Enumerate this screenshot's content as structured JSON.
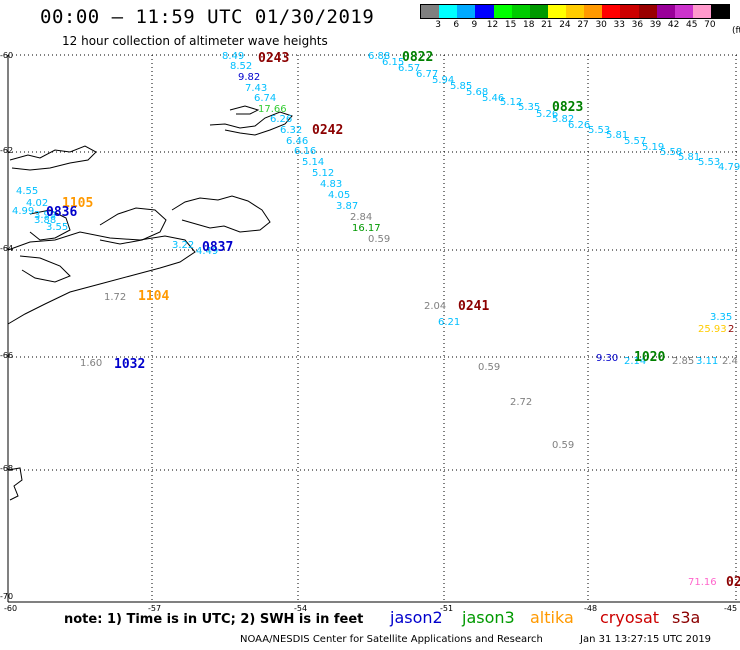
{
  "header": {
    "title": "00:00 – 11:59 UTC 01/30/2019",
    "subtitle": "12 hour collection of altimeter wave heights"
  },
  "legend": {
    "unit": "(ft)",
    "colors": [
      "#808080",
      "#00ffff",
      "#00aaff",
      "#0000ff",
      "#00ff00",
      "#00cc00",
      "#009900",
      "#ffff00",
      "#ffcc00",
      "#ff9900",
      "#ff0000",
      "#cc0000",
      "#990000",
      "#990099",
      "#cc33cc",
      "#ff99cc",
      "#000000"
    ],
    "labels": [
      "3",
      "6",
      "9",
      "12",
      "15",
      "18",
      "21",
      "24",
      "27",
      "30",
      "33",
      "36",
      "39",
      "42",
      "45",
      "70"
    ]
  },
  "axes": {
    "lat_labels": [
      "-60",
      "-62",
      "-64",
      "-66",
      "-68",
      "-70"
    ],
    "lon_labels": [
      "-57",
      "-54",
      "-51",
      "-48",
      "-45"
    ],
    "lon_left_label": "-60"
  },
  "passes": [
    {
      "label": "0243",
      "color": "#8b0000"
    },
    {
      "label": "0822",
      "color": "#008000"
    },
    {
      "label": "0823",
      "color": "#008000"
    },
    {
      "label": "0242",
      "color": "#8b0000"
    },
    {
      "label": "1105",
      "color": "#ff9900"
    },
    {
      "label": "0836",
      "color": "#0000cc"
    },
    {
      "label": "0837",
      "color": "#0000cc"
    },
    {
      "label": "1104",
      "color": "#ff9900"
    },
    {
      "label": "0241",
      "color": "#8b0000"
    },
    {
      "label": "1032",
      "color": "#0000cc"
    },
    {
      "label": "1020",
      "color": "#008000"
    },
    {
      "label": "02",
      "color": "#8b0000"
    }
  ],
  "points": [
    {
      "v": "8.49",
      "c": "#00bfff"
    },
    {
      "v": "8.52",
      "c": "#00bfff"
    },
    {
      "v": "9.82",
      "c": "#0000cc"
    },
    {
      "v": "7.43",
      "c": "#00bfff"
    },
    {
      "v": "6.74",
      "c": "#00bfff"
    },
    {
      "v": "17.66",
      "c": "#33cc33"
    },
    {
      "v": "6.26",
      "c": "#00bfff"
    },
    {
      "v": "6.32",
      "c": "#00bfff"
    },
    {
      "v": "6.46",
      "c": "#00bfff"
    },
    {
      "v": "6.16",
      "c": "#00bfff"
    },
    {
      "v": "5.14",
      "c": "#00bfff"
    },
    {
      "v": "5.12",
      "c": "#00bfff"
    },
    {
      "v": "4.83",
      "c": "#00bfff"
    },
    {
      "v": "4.05",
      "c": "#00bfff"
    },
    {
      "v": "3.87",
      "c": "#00bfff"
    },
    {
      "v": "2.84",
      "c": "#808080"
    },
    {
      "v": "16.17",
      "c": "#009900"
    },
    {
      "v": "0.59",
      "c": "#808080"
    },
    {
      "v": "6.88",
      "c": "#00bfff"
    },
    {
      "v": "6.15",
      "c": "#00bfff"
    },
    {
      "v": "6.57",
      "c": "#00bfff"
    },
    {
      "v": "6.77",
      "c": "#00bfff"
    },
    {
      "v": "5.94",
      "c": "#00bfff"
    },
    {
      "v": "5.85",
      "c": "#00bfff"
    },
    {
      "v": "5.68",
      "c": "#00bfff"
    },
    {
      "v": "5.46",
      "c": "#00bfff"
    },
    {
      "v": "5.12",
      "c": "#00bfff"
    },
    {
      "v": "5.35",
      "c": "#00bfff"
    },
    {
      "v": "5.26",
      "c": "#00bfff"
    },
    {
      "v": "5.82",
      "c": "#00bfff"
    },
    {
      "v": "6.26",
      "c": "#00bfff"
    },
    {
      "v": "5.53",
      "c": "#00bfff"
    },
    {
      "v": "5.81",
      "c": "#00bfff"
    },
    {
      "v": "5.57",
      "c": "#00bfff"
    },
    {
      "v": "5.19",
      "c": "#00bfff"
    },
    {
      "v": "5.58",
      "c": "#00bfff"
    },
    {
      "v": "5.81",
      "c": "#00bfff"
    },
    {
      "v": "5.53",
      "c": "#00bfff"
    },
    {
      "v": "4.79",
      "c": "#00bfff"
    },
    {
      "v": "4.55",
      "c": "#00bfff"
    },
    {
      "v": "4.02",
      "c": "#00bfff"
    },
    {
      "v": "4.99",
      "c": "#00bfff"
    },
    {
      "v": "3.99",
      "c": "#00bfff"
    },
    {
      "v": "3.88",
      "c": "#00bfff"
    },
    {
      "v": "3.55",
      "c": "#00bfff"
    },
    {
      "v": "3.22",
      "c": "#00bfff"
    },
    {
      "v": "4.49",
      "c": "#00bfff"
    },
    {
      "v": "1.72",
      "c": "#808080"
    },
    {
      "v": "2.04",
      "c": "#808080"
    },
    {
      "v": "6.21",
      "c": "#00bfff"
    },
    {
      "v": "1.60",
      "c": "#808080"
    },
    {
      "v": "0.59",
      "c": "#808080"
    },
    {
      "v": "2.72",
      "c": "#808080"
    },
    {
      "v": "0.59",
      "c": "#808080"
    },
    {
      "v": "9.30",
      "c": "#0000cc"
    },
    {
      "v": "2.14",
      "c": "#00bfff"
    },
    {
      "v": "2.85",
      "c": "#808080"
    },
    {
      "v": "3.11",
      "c": "#00bfff"
    },
    {
      "v": "2.4",
      "c": "#808080"
    },
    {
      "v": "3.35",
      "c": "#00bfff"
    },
    {
      "v": "25.93",
      "c": "#ffcc00"
    },
    {
      "v": "2",
      "c": "#8b0000"
    },
    {
      "v": "71.16",
      "c": "#ff66cc"
    }
  ],
  "note": "note: 1) Time is in UTC; 2) SWH is in feet",
  "satellites": [
    {
      "name": "jason2",
      "color": "#0000cc"
    },
    {
      "name": "jason3",
      "color": "#009900"
    },
    {
      "name": "altika",
      "color": "#ff9900"
    },
    {
      "name": "cryosat",
      "color": "#cc0000"
    },
    {
      "name": "s3a",
      "color": "#8b0000"
    }
  ],
  "footer": {
    "credit": "NOAA/NESDIS Center for Satellite Applications and Research",
    "timestamp": "Jan 31 13:27:15 UTC 2019"
  }
}
